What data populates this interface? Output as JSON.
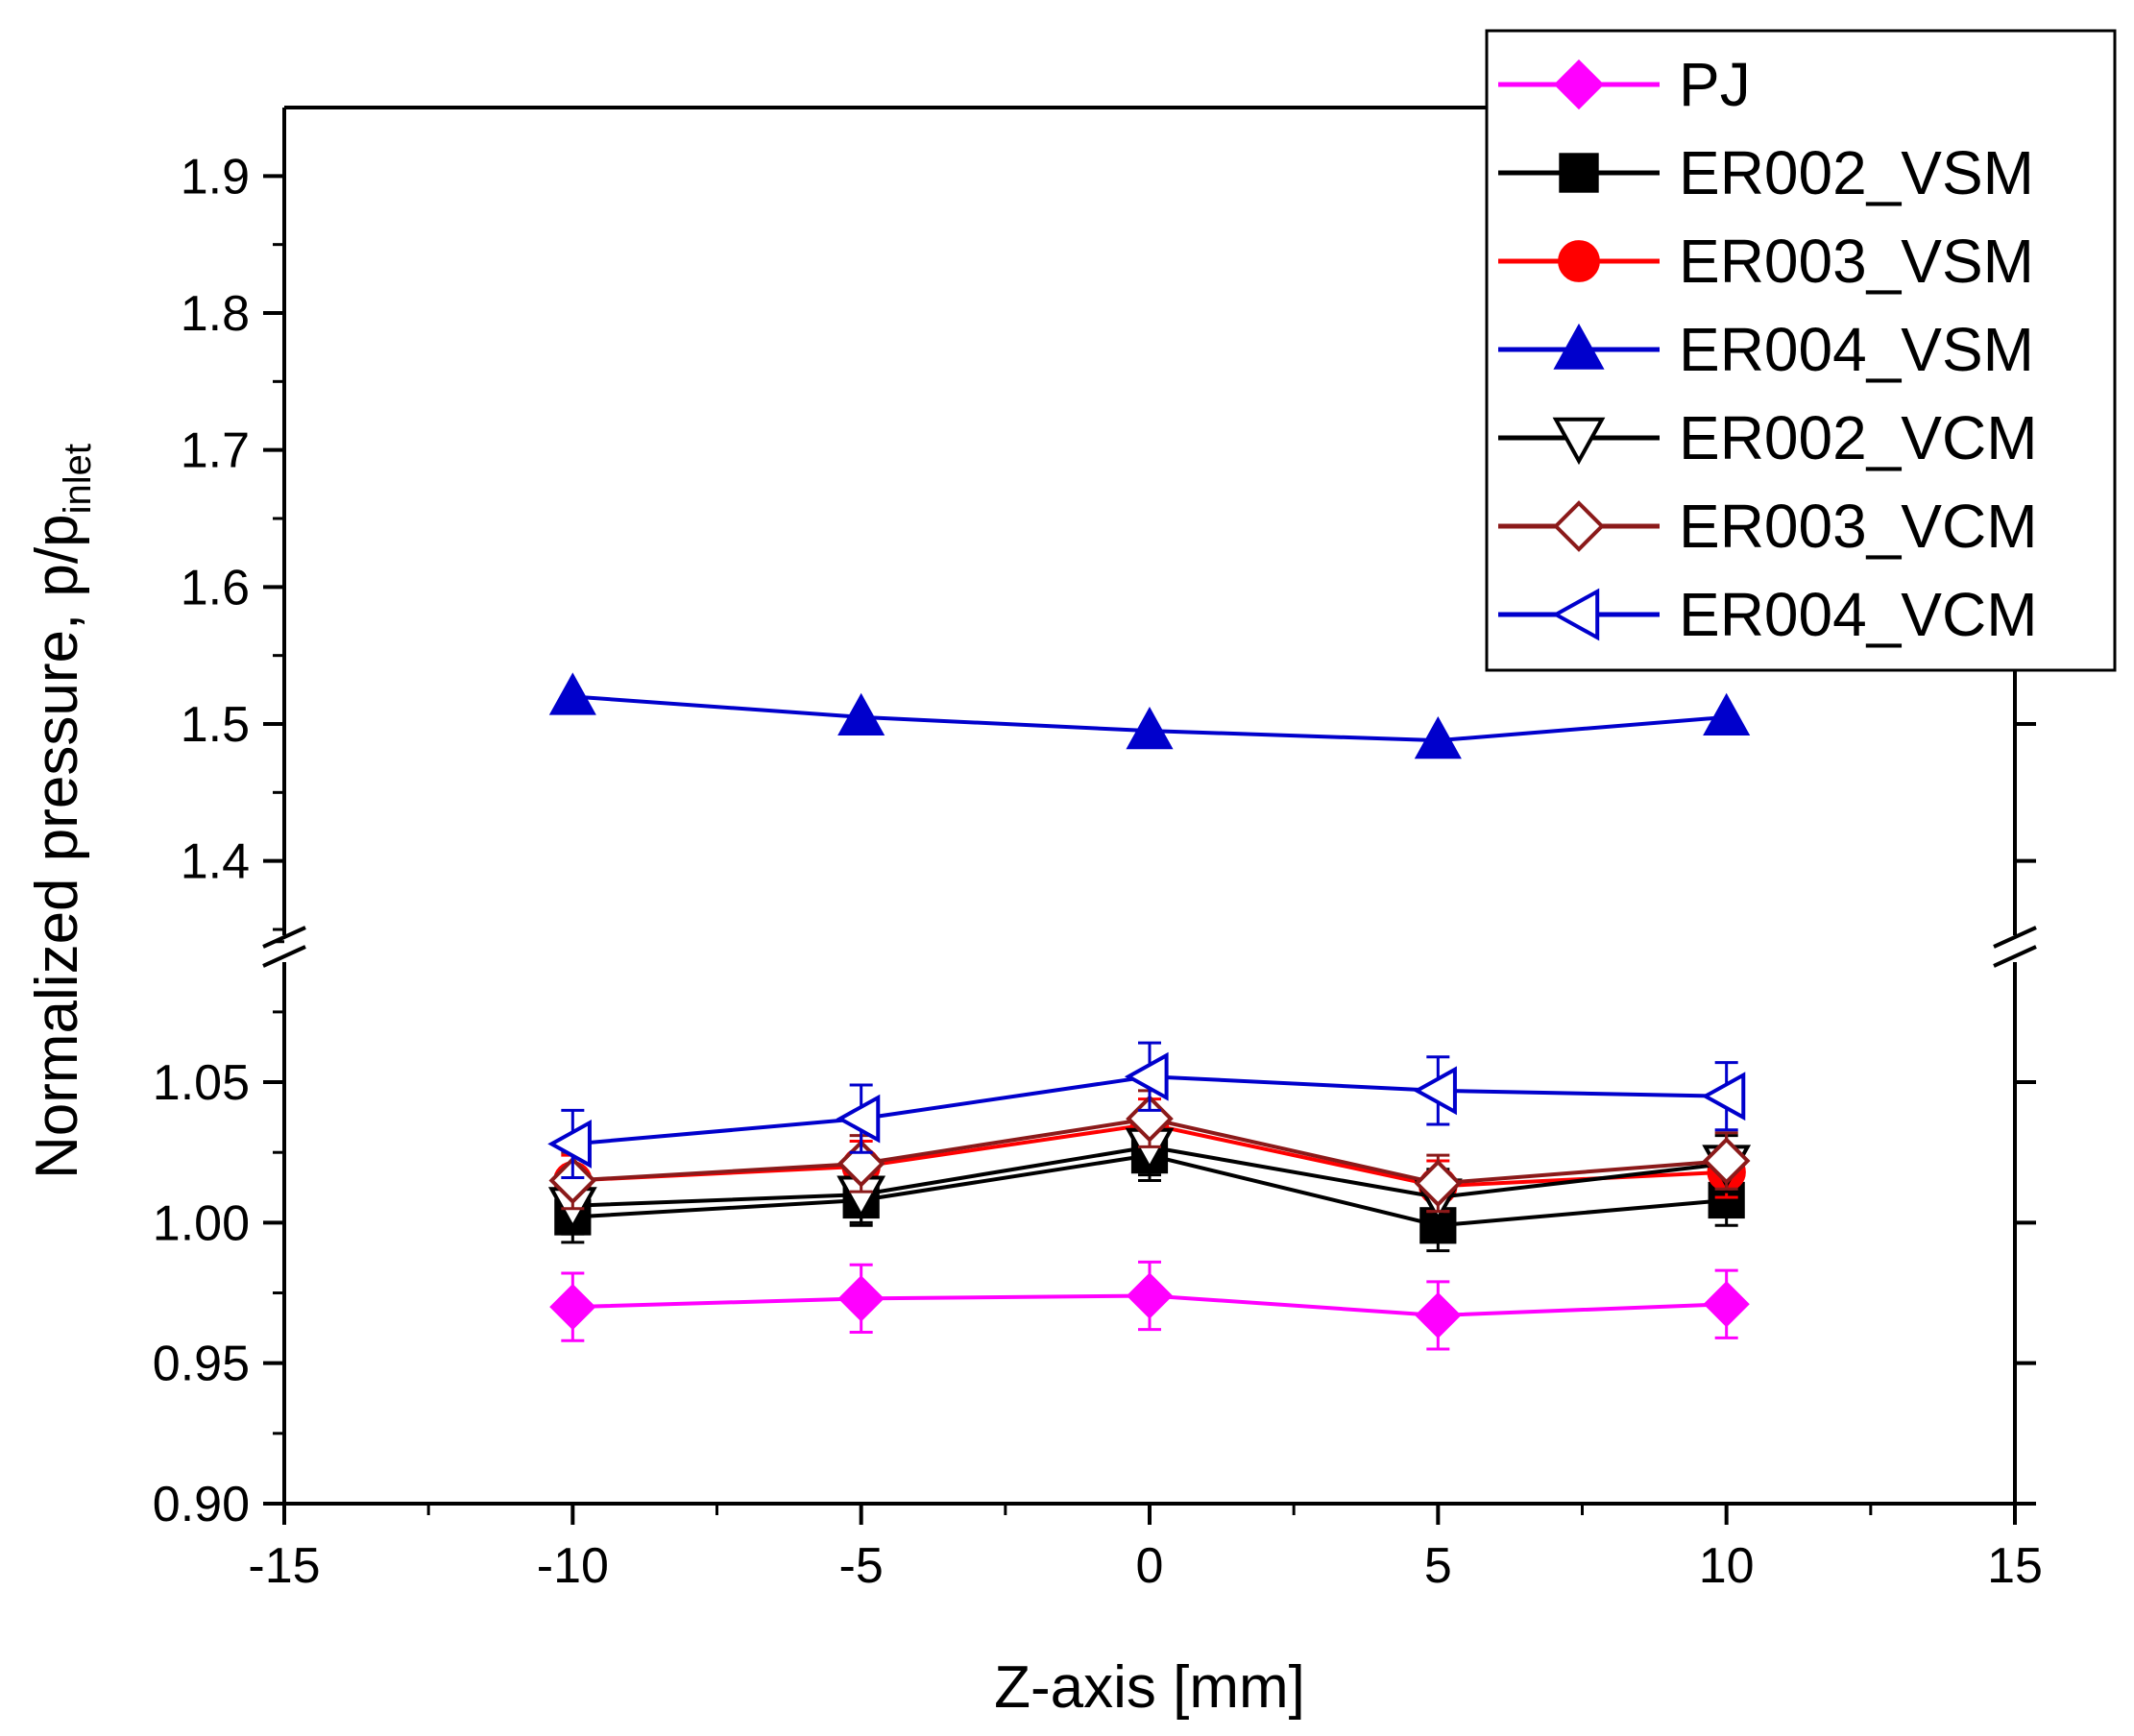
{
  "chart_data": {
    "type": "line",
    "xlabel": "Z-axis [mm]",
    "ylabel_main": "Normalized pressure, p/p",
    "ylabel_sub": "inlet",
    "x_ticks": [
      -15,
      -10,
      -5,
      0,
      5,
      10,
      15
    ],
    "x_tick_labels": [
      "-15",
      "-10",
      "-5",
      "0",
      "5",
      "10",
      "15"
    ],
    "xlim": [
      -15,
      15
    ],
    "upper_axis": {
      "ylim": [
        1.35,
        1.95
      ],
      "ticks": [
        1.4,
        1.5,
        1.6,
        1.7,
        1.8,
        1.9
      ],
      "tick_labels": [
        "1.4",
        "1.5",
        "1.6",
        "1.7",
        "1.8",
        "1.9"
      ]
    },
    "lower_axis": {
      "ylim": [
        0.9,
        1.09
      ],
      "ticks": [
        0.9,
        0.95,
        1.0,
        1.05
      ],
      "tick_labels": [
        "0.90",
        "0.95",
        "1.00",
        "1.05"
      ]
    },
    "axis_break": true,
    "legend_position": "top-right",
    "x": [
      -10,
      -5,
      0,
      5,
      10
    ],
    "series": [
      {
        "name": "PJ",
        "color": "#ff00ff",
        "marker": "diamond-filled",
        "values": [
          0.97,
          0.973,
          0.974,
          0.967,
          0.971
        ],
        "errors": [
          0.012,
          0.012,
          0.012,
          0.012,
          0.012
        ]
      },
      {
        "name": "ER002_VSM",
        "color": "#000000",
        "marker": "square-filled",
        "values": [
          1.002,
          1.008,
          1.024,
          0.999,
          1.008
        ],
        "errors": [
          0.009,
          0.009,
          0.009,
          0.009,
          0.009
        ]
      },
      {
        "name": "ER003_VSM",
        "color": "#ff0000",
        "marker": "circle-filled",
        "values": [
          1.015,
          1.02,
          1.035,
          1.013,
          1.018
        ],
        "errors": [
          0.009,
          0.009,
          0.009,
          0.009,
          0.009
        ]
      },
      {
        "name": "ER004_VSM",
        "color": "#0000cc",
        "marker": "triangle-up-filled",
        "values": [
          1.52,
          1.505,
          1.495,
          1.488,
          1.505
        ],
        "errors": [
          0,
          0,
          0,
          0,
          0
        ]
      },
      {
        "name": "ER002_VCM",
        "color": "#000000",
        "marker": "triangle-down-open",
        "values": [
          1.006,
          1.01,
          1.027,
          1.009,
          1.021
        ],
        "errors": [
          0.01,
          0.01,
          0.01,
          0.01,
          0.01
        ]
      },
      {
        "name": "ER003_VCM",
        "color": "#8b1a1a",
        "marker": "diamond-open",
        "values": [
          1.015,
          1.021,
          1.037,
          1.014,
          1.022
        ],
        "errors": [
          0.01,
          0.01,
          0.01,
          0.01,
          0.01
        ]
      },
      {
        "name": "ER004_VCM",
        "color": "#0000cc",
        "marker": "triangle-left-open",
        "values": [
          1.028,
          1.037,
          1.052,
          1.047,
          1.045
        ],
        "errors": [
          0.012,
          0.012,
          0.012,
          0.012,
          0.012
        ]
      }
    ]
  }
}
